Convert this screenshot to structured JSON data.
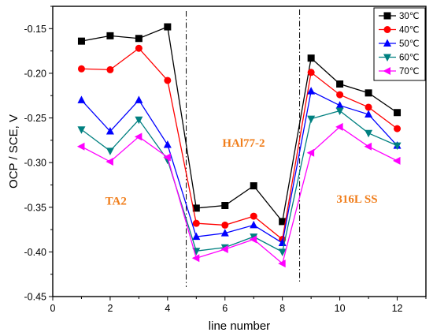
{
  "chart_data": {
    "type": "line",
    "title": "",
    "xlabel": "line number",
    "ylabel": "OCP / SCE, V",
    "xlim": [
      0,
      13
    ],
    "ylim": [
      -0.45,
      -0.125
    ],
    "x_ticks": [
      0,
      2,
      4,
      6,
      8,
      10,
      12
    ],
    "x_tick_labels": [
      "0",
      "2",
      "4",
      "6",
      "8",
      "10",
      "12"
    ],
    "y_ticks": [
      -0.45,
      -0.4,
      -0.35,
      -0.3,
      -0.25,
      -0.2,
      -0.15
    ],
    "y_tick_labels": [
      "-0.45",
      "-0.40",
      "-0.35",
      "-0.30",
      "-0.25",
      "-0.20",
      "-0.15"
    ],
    "grid": false,
    "legend_position": "top-right",
    "x": [
      1,
      2,
      3,
      4,
      5,
      6,
      7,
      8,
      9,
      10,
      11,
      12
    ],
    "series": [
      {
        "name": "30℃",
        "color": "#000000",
        "marker": "square",
        "values": [
          -0.164,
          -0.158,
          -0.161,
          -0.148,
          -0.351,
          -0.348,
          -0.326,
          -0.366,
          -0.183,
          -0.212,
          -0.222,
          -0.244
        ]
      },
      {
        "name": "40℃",
        "color": "#ff0000",
        "marker": "circle",
        "values": [
          -0.195,
          -0.196,
          -0.172,
          -0.208,
          -0.368,
          -0.37,
          -0.36,
          -0.386,
          -0.199,
          -0.224,
          -0.238,
          -0.262
        ]
      },
      {
        "name": "50℃",
        "color": "#0000ff",
        "marker": "triangle-up",
        "values": [
          -0.23,
          -0.265,
          -0.23,
          -0.28,
          -0.383,
          -0.379,
          -0.37,
          -0.39,
          -0.22,
          -0.236,
          -0.246,
          -0.281
        ]
      },
      {
        "name": "60℃",
        "color": "#008080",
        "marker": "triangle-down",
        "values": [
          -0.263,
          -0.287,
          -0.252,
          -0.297,
          -0.399,
          -0.395,
          -0.383,
          -0.4,
          -0.251,
          -0.242,
          -0.267,
          -0.281
        ]
      },
      {
        "name": "70℃",
        "color": "#ff00ff",
        "marker": "triangle-left",
        "values": [
          -0.282,
          -0.299,
          -0.271,
          -0.294,
          -0.407,
          -0.397,
          -0.386,
          -0.413,
          -0.289,
          -0.26,
          -0.282,
          -0.298
        ]
      }
    ],
    "dividers_x": [
      4.65,
      8.6
    ],
    "annotations": [
      {
        "text": "TA2",
        "x": 2.2,
        "y": -0.347
      },
      {
        "text": "HAl77-2",
        "x": 6.65,
        "y": -0.282
      },
      {
        "text": "316L SS",
        "x": 10.6,
        "y": -0.345
      }
    ]
  }
}
